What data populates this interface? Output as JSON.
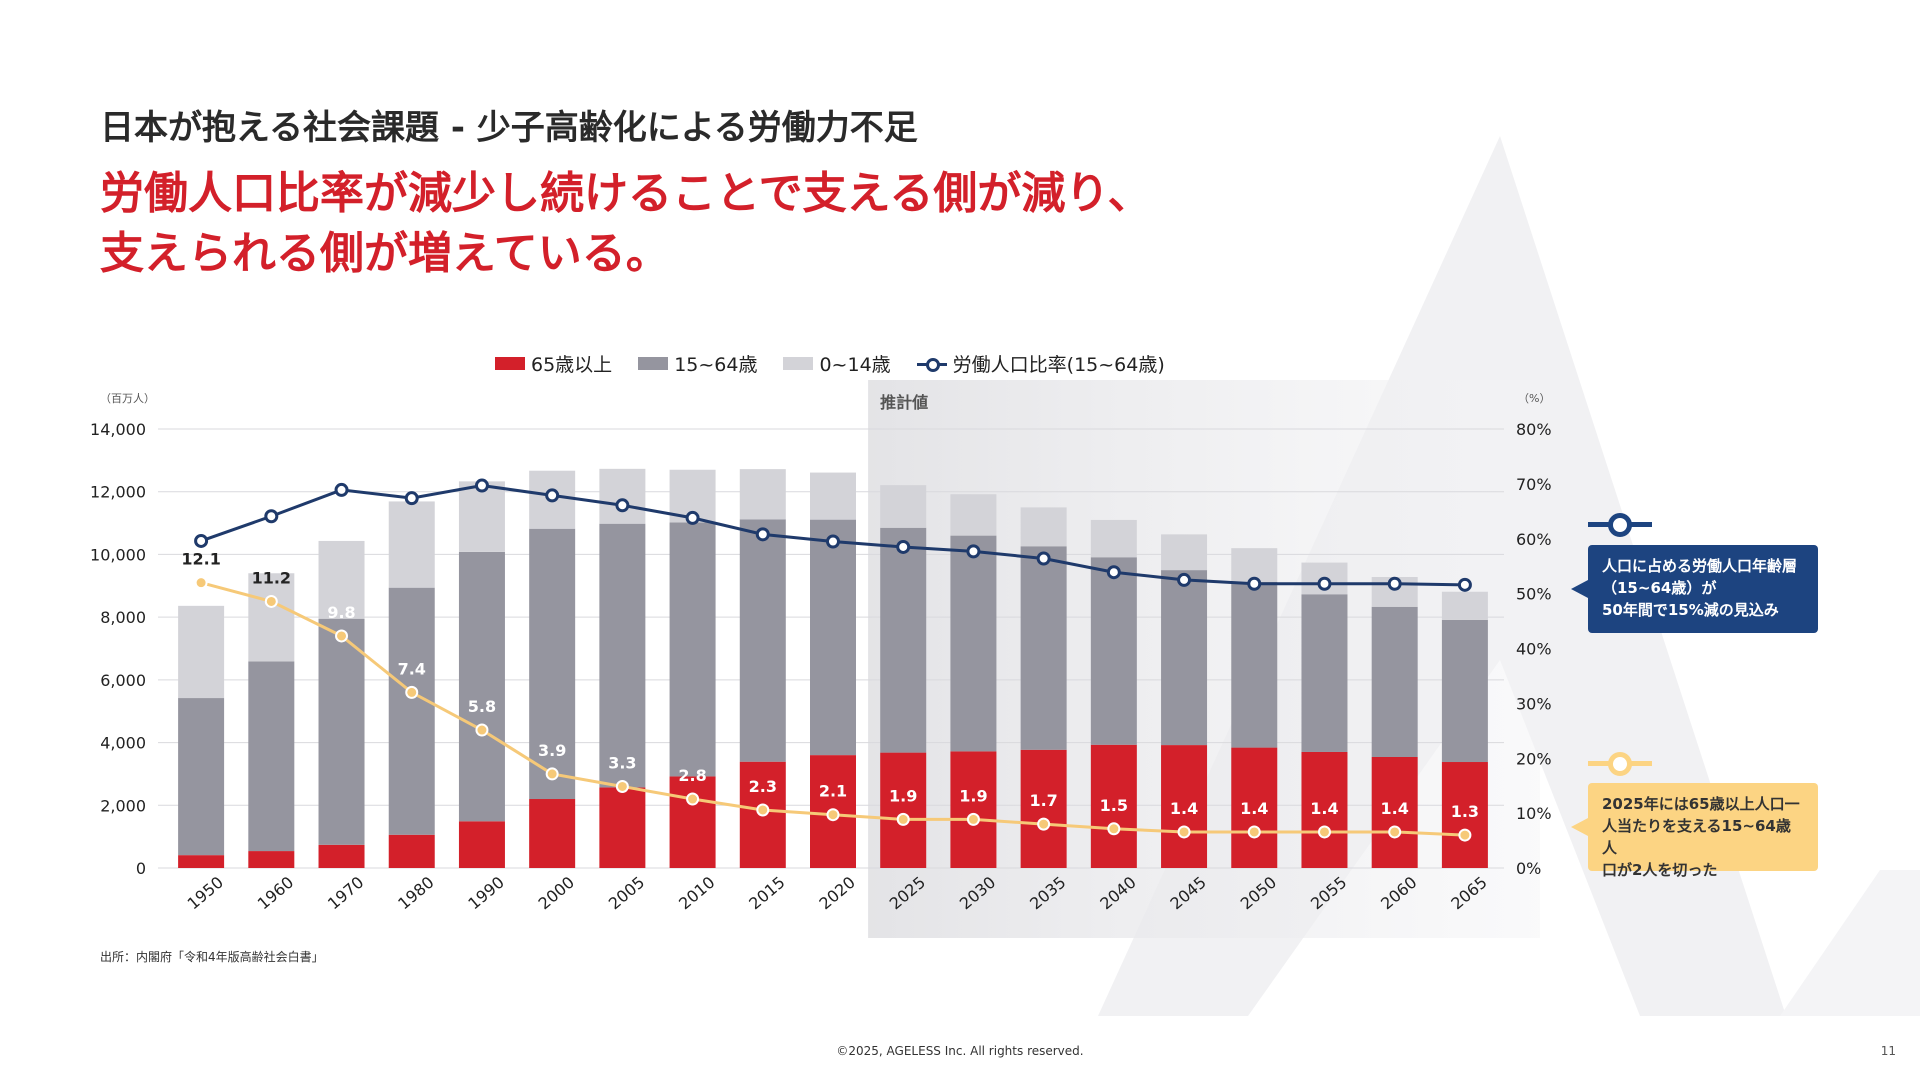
{
  "slide": {
    "subtitle": "日本が抱える社会課題 - 少子高齢化による労働力不足",
    "headline_line1": "労働人口比率が減少し続けることで支える側が減り、",
    "headline_line2": "支えられる側が増えている。",
    "source": "出所：内閣府「令和4年版高齢社会白書」",
    "footer": "©2025, AGELESS Inc. All rights reserved.",
    "page_number": "11"
  },
  "callouts": {
    "blue": "人口に占める労働人口年齢層\n（15~64歳）が\n50年間で15%減の見込み",
    "yellow": "2025年には65歳以上人口一\n人当たりを支える15~64歳人\n口が2人を切った"
  },
  "colors": {
    "age65": "#d3202a",
    "age15_64": "#95959f",
    "age0_14": "#d3d3d8",
    "ratio_line": "#1f3a6b",
    "support_line": "#f6c978",
    "callout_blue": "#1d4480",
    "callout_yellow": "#fcd483"
  },
  "chart_data": {
    "type": "bar",
    "stacked": true,
    "categories": [
      "1950",
      "1960",
      "1970",
      "1980",
      "1990",
      "2000",
      "2005",
      "2010",
      "2015",
      "2020",
      "2025",
      "2030",
      "2035",
      "2040",
      "2045",
      "2050",
      "2055",
      "2060",
      "2065"
    ],
    "projection_label": "推計値",
    "projection_start": "2025",
    "y_left": {
      "unit": "（百万人）",
      "ticks": [
        "0",
        "2,000",
        "4,000",
        "6,000",
        "8,000",
        "10,000",
        "12,000",
        "14,000"
      ],
      "ylim": [
        0,
        14000
      ]
    },
    "y_right": {
      "unit": "（%）",
      "ticks": [
        "0%",
        "10%",
        "20%",
        "30%",
        "40%",
        "50%",
        "60%",
        "70%",
        "80%"
      ],
      "ylim": [
        0,
        80
      ]
    },
    "legend": [
      "65歳以上",
      "15~64歳",
      "0~14歳",
      "労働人口比率(15~64歳)"
    ],
    "series": [
      {
        "name": "65歳以上",
        "values": [
          410,
          540,
          740,
          1060,
          1490,
          2200,
          2570,
          2920,
          3390,
          3600,
          3680,
          3720,
          3770,
          3930,
          3920,
          3840,
          3700,
          3540,
          3380
        ]
      },
      {
        "name": "15~64歳",
        "values": [
          5010,
          6050,
          7210,
          7880,
          8590,
          8620,
          8410,
          8100,
          7730,
          7510,
          7170,
          6880,
          6490,
          5980,
          5580,
          5280,
          5030,
          4790,
          4530
        ]
      },
      {
        "name": "0~14歳",
        "values": [
          2940,
          2810,
          2480,
          2750,
          2250,
          1850,
          1750,
          1680,
          1600,
          1500,
          1360,
          1320,
          1240,
          1190,
          1140,
          1080,
          1010,
          950,
          900
        ]
      },
      {
        "name": "労働人口比率(15~64歳)",
        "axis": "right",
        "values": [
          59.6,
          64.1,
          68.9,
          67.4,
          69.7,
          67.9,
          66.1,
          63.8,
          60.8,
          59.5,
          58.5,
          57.7,
          56.4,
          53.9,
          52.5,
          51.8,
          51.8,
          51.8,
          51.6
        ]
      },
      {
        "axis": "left",
        "labels": [
          "12.1",
          "11.2",
          "9.8",
          "7.4",
          "5.8",
          "3.9",
          "3.3",
          "2.8",
          "2.3",
          "2.1",
          "1.9",
          "1.9",
          "1.7",
          "1.5",
          "1.4",
          "1.4",
          "1.4",
          "1.4",
          "1.3"
        ],
        "values": [
          9100,
          8500,
          7400,
          5600,
          4400,
          3000,
          2600,
          2200,
          1850,
          1700,
          1550,
          1550,
          1400,
          1250,
          1150,
          1150,
          1150,
          1150,
          1050
        ]
      }
    ]
  }
}
